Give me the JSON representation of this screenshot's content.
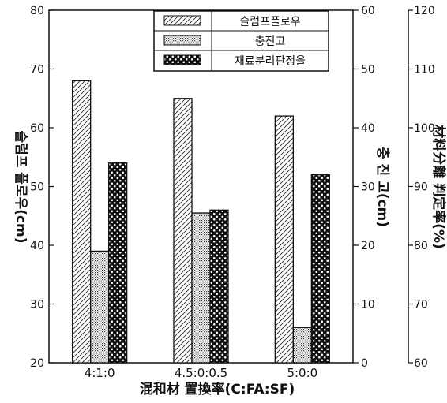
{
  "chart_data": {
    "type": "bar",
    "categories": [
      "4:1:0",
      "4.5:0:0.5",
      "5:0:0"
    ],
    "xlabel": "混和材 置換率(C:FA:SF)",
    "axes": {
      "left": {
        "label": "슬럼프 플로우(cm)",
        "ylim": [
          20,
          80
        ],
        "ticks": [
          20,
          30,
          40,
          50,
          60,
          70,
          80
        ]
      },
      "right1": {
        "label": "충 진 고(cm)",
        "ylim": [
          0,
          60
        ],
        "ticks": [
          0,
          10,
          20,
          30,
          40,
          50,
          60
        ]
      },
      "right2": {
        "label": "材料分離 判定率(%)",
        "ylim": [
          60,
          120
        ],
        "ticks": [
          60,
          70,
          80,
          90,
          100,
          110,
          120
        ]
      }
    },
    "series": [
      {
        "name": "슬럼프플로우",
        "axis": "left",
        "pattern": "hatch",
        "values": [
          68,
          65,
          62
        ]
      },
      {
        "name": "충진고",
        "axis": "right1",
        "pattern": "dots",
        "values": [
          19,
          25.5,
          6
        ]
      },
      {
        "name": "재료분리판정율",
        "axis": "right2",
        "pattern": "circles",
        "values": [
          94,
          86,
          92
        ]
      }
    ],
    "legend_position": "top-right"
  }
}
